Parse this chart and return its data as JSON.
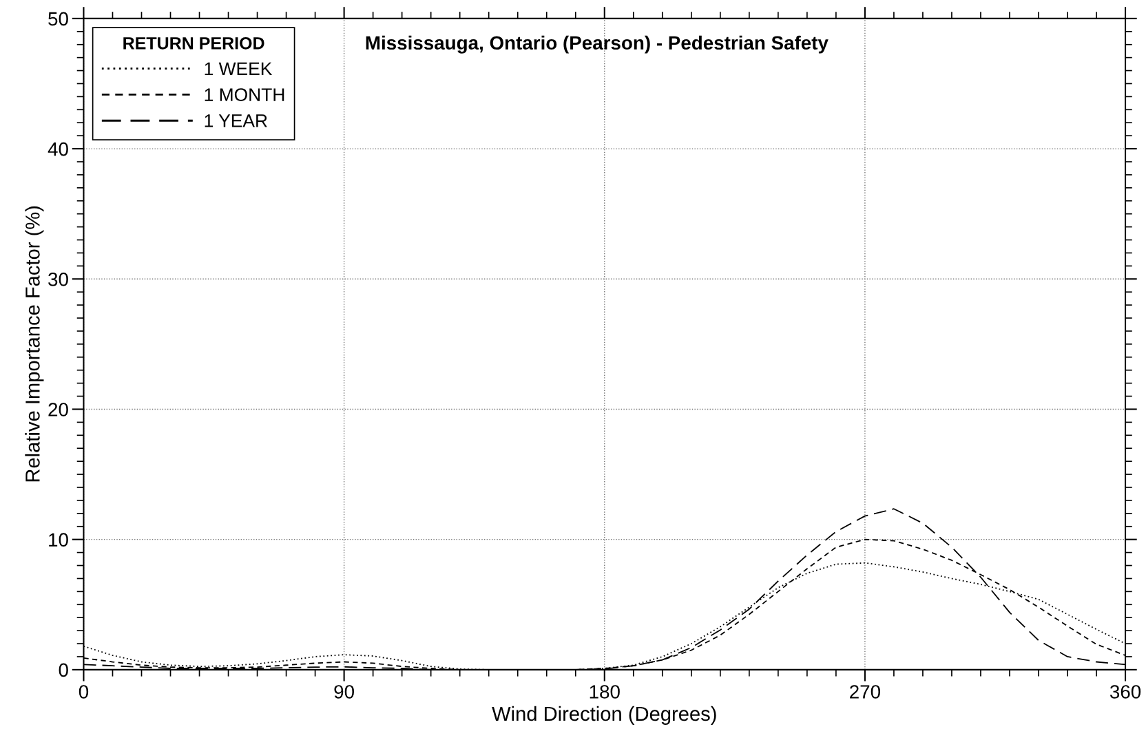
{
  "chart_data": {
    "type": "line",
    "title": "Mississauga, Ontario (Pearson) - Pedestrian Safety",
    "xlabel": "Wind Direction (Degrees)",
    "ylabel": "Relative Importance Factor (%)",
    "legend_title": "RETURN PERIOD",
    "x": [
      0,
      10,
      20,
      30,
      40,
      50,
      60,
      70,
      80,
      90,
      100,
      110,
      120,
      130,
      140,
      150,
      160,
      170,
      180,
      190,
      200,
      210,
      220,
      230,
      240,
      250,
      260,
      270,
      280,
      290,
      300,
      310,
      320,
      330,
      340,
      350,
      360
    ],
    "series": [
      {
        "name": "1 WEEK",
        "color": "#000000",
        "line_style": "dotted",
        "values": [
          1.8,
          1.1,
          0.6,
          0.35,
          0.25,
          0.3,
          0.45,
          0.7,
          1.0,
          1.15,
          1.05,
          0.7,
          0.25,
          0.05,
          0,
          0,
          0,
          0,
          0.1,
          0.35,
          1.0,
          2.0,
          3.3,
          4.8,
          6.3,
          7.4,
          8.1,
          8.2,
          7.9,
          7.5,
          7.0,
          6.55,
          6.0,
          5.4,
          4.25,
          3.1,
          2.0
        ]
      },
      {
        "name": "1 MONTH",
        "color": "#000000",
        "line_style": "dashed",
        "values": [
          0.9,
          0.6,
          0.35,
          0.2,
          0.15,
          0.15,
          0.2,
          0.35,
          0.5,
          0.6,
          0.5,
          0.25,
          0.1,
          0,
          0,
          0,
          0,
          0,
          0.1,
          0.3,
          0.75,
          1.5,
          2.65,
          4.25,
          6.0,
          7.75,
          9.4,
          10.0,
          9.9,
          9.25,
          8.4,
          7.3,
          6.15,
          4.8,
          3.35,
          1.95,
          1.1
        ]
      },
      {
        "name": "1 YEAR",
        "color": "#000000",
        "line_style": "long dashed",
        "values": [
          0.4,
          0.3,
          0.2,
          0.1,
          0.1,
          0.1,
          0.1,
          0.15,
          0.2,
          0.22,
          0.15,
          0.1,
          0,
          0,
          0,
          0,
          0,
          0,
          0.05,
          0.3,
          0.75,
          1.7,
          3.05,
          4.65,
          6.8,
          8.8,
          10.6,
          11.8,
          12.35,
          11.25,
          9.4,
          7.1,
          4.4,
          2.25,
          1.0,
          0.6,
          0.4
        ]
      }
    ],
    "xlim": [
      0,
      360
    ],
    "ylim": [
      0,
      50
    ],
    "xticks": [
      0,
      90,
      180,
      270,
      360
    ],
    "yticks": [
      0,
      10,
      20,
      30,
      40,
      50
    ],
    "grid": true,
    "legend": "top left",
    "marker": "none"
  }
}
